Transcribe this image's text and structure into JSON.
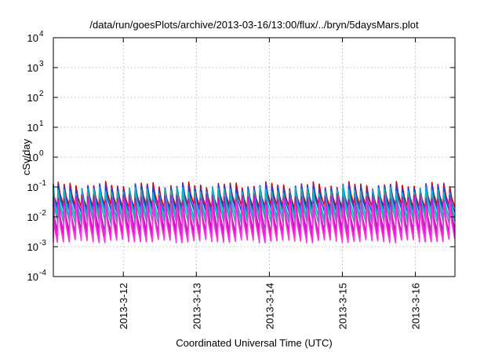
{
  "chart_data": {
    "type": "line",
    "title": "/data/run/goesPlots/archive/2013-03-16/13:00/flux/../bryn/5daysMars.plot",
    "xlabel": "Coordinated Universal Time (UTC)",
    "ylabel": "cSv/day",
    "yscale": "log",
    "ylim": [
      0.0001,
      10000
    ],
    "xlim": [
      "2013-03-11 01:00",
      "2013-03-16 13:00"
    ],
    "grid": true,
    "legend": "none",
    "y_ticks": [
      {
        "value": 0.0001,
        "base": "10",
        "exp": "-4"
      },
      {
        "value": 0.001,
        "base": "10",
        "exp": "-3"
      },
      {
        "value": 0.01,
        "base": "10",
        "exp": "-2"
      },
      {
        "value": 0.1,
        "base": "10",
        "exp": "-1"
      },
      {
        "value": 1,
        "base": "10",
        "exp": "0"
      },
      {
        "value": 10,
        "base": "10",
        "exp": "1"
      },
      {
        "value": 100,
        "base": "10",
        "exp": "2"
      },
      {
        "value": 1000,
        "base": "10",
        "exp": "3"
      },
      {
        "value": 10000,
        "base": "10",
        "exp": "4"
      }
    ],
    "x_ticks": [
      {
        "value": "2013-03-12 00:00",
        "label": "2013-3-12"
      },
      {
        "value": "2013-03-13 00:00",
        "label": "2013-3-13"
      },
      {
        "value": "2013-03-14 00:00",
        "label": "2013-3-14"
      },
      {
        "value": "2013-03-15 00:00",
        "label": "2013-3-15"
      },
      {
        "value": "2013-03-16 00:00",
        "label": "2013-3-16"
      }
    ],
    "orbit_period_hours": 1.95,
    "series": [
      {
        "color": "#cc0000",
        "peak": 0.115,
        "trough": 0.0225
      },
      {
        "color": "#2244dd",
        "peak": 0.1,
        "trough": 0.0165
      },
      {
        "color": "#00bcd4",
        "peak": 0.078,
        "trough": 0.0105
      },
      {
        "color": "#20b2aa",
        "peak": 0.062,
        "trough": 0.0072
      },
      {
        "color": "#9a2b9a",
        "peak": 0.045,
        "trough": 0.0033
      },
      {
        "color": "#ee00ee",
        "peak": 0.034,
        "trough": 0.0022
      },
      {
        "color": "#ff33dd",
        "peak": 0.026,
        "trough": 0.0016
      }
    ]
  }
}
